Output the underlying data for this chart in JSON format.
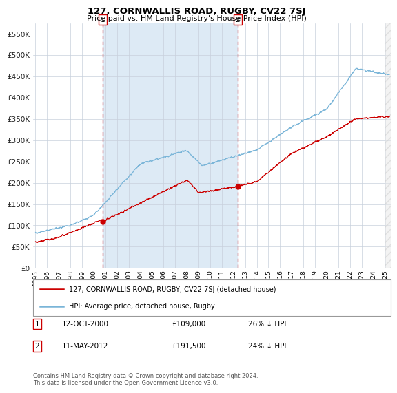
{
  "title": "127, CORNWALLIS ROAD, RUGBY, CV22 7SJ",
  "subtitle": "Price paid vs. HM Land Registry's House Price Index (HPI)",
  "hpi_color": "#7ab5d8",
  "price_color": "#cc0000",
  "bg_span_color": "#ddeaf5",
  "plot_bg": "#ffffff",
  "grid_color": "#c8d0dc",
  "vline_color": "#cc0000",
  "sale1_x": 2000.79,
  "sale1_y": 109000,
  "sale2_x": 2012.36,
  "sale2_y": 191500,
  "sale1_label": "1",
  "sale2_label": "2",
  "ylim": [
    0,
    575000
  ],
  "xlim_start": 1994.8,
  "xlim_end": 2025.5,
  "yticks": [
    0,
    50000,
    100000,
    150000,
    200000,
    250000,
    300000,
    350000,
    400000,
    450000,
    500000,
    550000
  ],
  "ytick_labels": [
    "£0",
    "£50K",
    "£100K",
    "£150K",
    "£200K",
    "£250K",
    "£300K",
    "£350K",
    "£400K",
    "£450K",
    "£500K",
    "£550K"
  ],
  "xtick_years": [
    1995,
    1996,
    1997,
    1998,
    1999,
    2000,
    2001,
    2002,
    2003,
    2004,
    2005,
    2006,
    2007,
    2008,
    2009,
    2010,
    2011,
    2012,
    2013,
    2014,
    2015,
    2016,
    2017,
    2018,
    2019,
    2020,
    2021,
    2022,
    2023,
    2024,
    2025
  ],
  "legend_line1": "127, CORNWALLIS ROAD, RUGBY, CV22 7SJ (detached house)",
  "legend_line2": "HPI: Average price, detached house, Rugby",
  "table_row1": [
    "1",
    "12-OCT-2000",
    "£109,000",
    "26% ↓ HPI"
  ],
  "table_row2": [
    "2",
    "11-MAY-2012",
    "£191,500",
    "24% ↓ HPI"
  ],
  "footnote": "Contains HM Land Registry data © Crown copyright and database right 2024.\nThis data is licensed under the Open Government Licence v3.0.",
  "hpi_seed": 42,
  "price_seed": 99
}
